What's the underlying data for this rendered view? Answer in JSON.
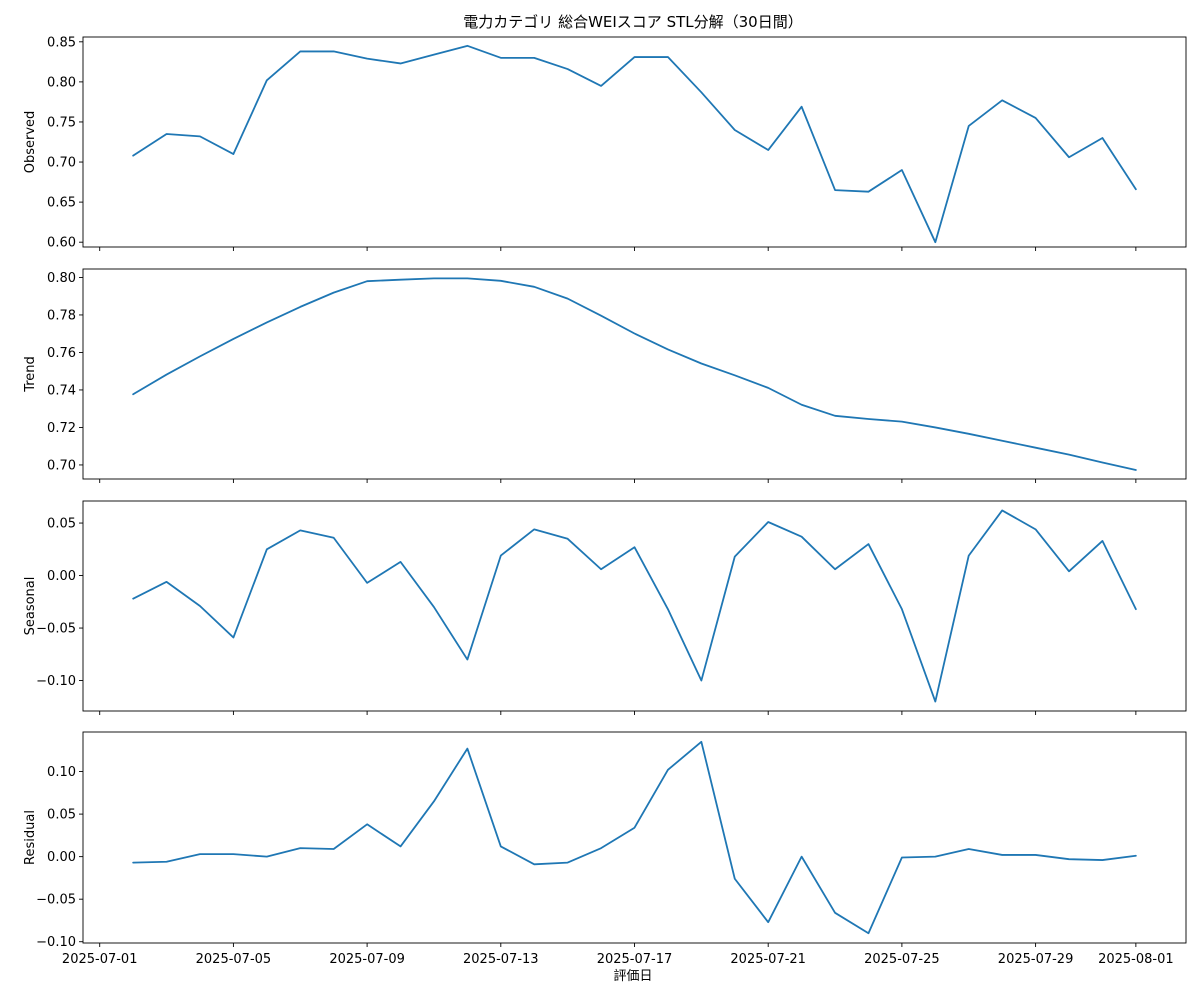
{
  "chart_data": {
    "type": "line",
    "title": "電力カテゴリ 総合WEIスコア STL分解（30日間）",
    "xlabel": "評価日",
    "color": "#1f77b4",
    "x_dates": [
      "2025-07-02",
      "2025-07-03",
      "2025-07-04",
      "2025-07-05",
      "2025-07-06",
      "2025-07-07",
      "2025-07-08",
      "2025-07-09",
      "2025-07-10",
      "2025-07-11",
      "2025-07-12",
      "2025-07-13",
      "2025-07-14",
      "2025-07-15",
      "2025-07-16",
      "2025-07-17",
      "2025-07-18",
      "2025-07-19",
      "2025-07-20",
      "2025-07-21",
      "2025-07-22",
      "2025-07-23",
      "2025-07-24",
      "2025-07-25",
      "2025-07-26",
      "2025-07-27",
      "2025-07-28",
      "2025-07-29",
      "2025-07-30",
      "2025-07-31",
      "2025-08-01"
    ],
    "xlim": [
      "2025-06-30.5",
      "2025-08-02.5"
    ],
    "x_tick_labels": [
      "2025-07-01",
      "2025-07-05",
      "2025-07-09",
      "2025-07-13",
      "2025-07-17",
      "2025-07-21",
      "2025-07-25",
      "2025-07-29",
      "2025-08-01"
    ],
    "panels": [
      {
        "ylabel": "Observed",
        "ylim": [
          0.594,
          0.856
        ],
        "yticks": [
          0.6,
          0.65,
          0.7,
          0.75,
          0.8,
          0.85
        ],
        "tick_format": "0.00",
        "values": [
          0.708,
          0.735,
          0.732,
          0.71,
          0.802,
          0.838,
          0.838,
          0.829,
          0.823,
          0.834,
          0.845,
          0.83,
          0.83,
          0.816,
          0.795,
          0.831,
          0.831,
          0.787,
          0.74,
          0.715,
          0.769,
          0.665,
          0.663,
          0.69,
          0.6,
          0.745,
          0.777,
          0.755,
          0.706,
          0.73,
          0.666
        ]
      },
      {
        "ylabel": "Trend",
        "ylim": [
          0.6925,
          0.8045
        ],
        "yticks": [
          0.7,
          0.72,
          0.74,
          0.76,
          0.78,
          0.8
        ],
        "tick_format": "0.00",
        "values": [
          0.7377,
          0.7482,
          0.7579,
          0.7672,
          0.776,
          0.7843,
          0.7919,
          0.798,
          0.7988,
          0.7995,
          0.7995,
          0.7982,
          0.795,
          0.7887,
          0.7796,
          0.7701,
          0.7616,
          0.7541,
          0.7478,
          0.7411,
          0.7321,
          0.7262,
          0.7245,
          0.7231,
          0.72,
          0.7166,
          0.7129,
          0.7092,
          0.7055,
          0.7013,
          0.6973
        ]
      },
      {
        "ylabel": "Seasonal",
        "ylim": [
          -0.129,
          0.071
        ],
        "yticks": [
          -0.1,
          -0.05,
          0.0,
          0.05
        ],
        "tick_format": "0.00",
        "values": [
          -0.022,
          -0.006,
          -0.029,
          -0.059,
          0.025,
          0.043,
          0.036,
          -0.007,
          0.013,
          -0.03,
          -0.08,
          0.019,
          0.044,
          0.035,
          0.006,
          0.027,
          -0.032,
          -0.1,
          0.018,
          0.051,
          0.037,
          0.006,
          0.03,
          -0.032,
          -0.12,
          0.019,
          0.062,
          0.044,
          0.004,
          0.033,
          -0.032
        ]
      },
      {
        "ylabel": "Residual",
        "ylim": [
          -0.1015,
          0.1465
        ],
        "yticks": [
          -0.1,
          -0.05,
          0.0,
          0.05,
          0.1
        ],
        "tick_format": "0.00",
        "values": [
          -0.007,
          -0.006,
          0.003,
          0.003,
          0.0,
          0.01,
          0.009,
          0.038,
          0.012,
          0.065,
          0.127,
          0.012,
          -0.009,
          -0.007,
          0.01,
          0.034,
          0.102,
          0.135,
          -0.026,
          -0.077,
          0.0,
          -0.066,
          -0.09,
          -0.001,
          0.0,
          0.009,
          0.002,
          0.002,
          -0.003,
          -0.004,
          0.001
        ]
      }
    ]
  }
}
